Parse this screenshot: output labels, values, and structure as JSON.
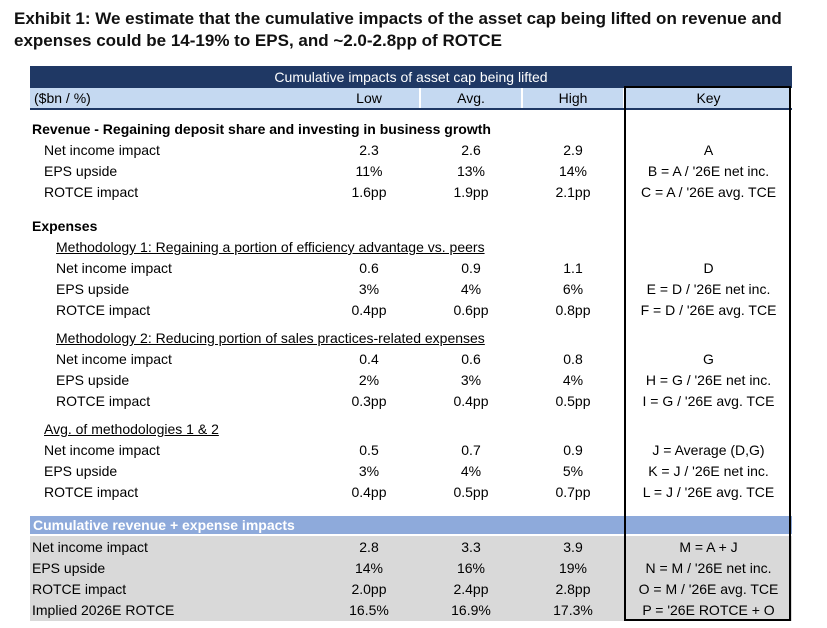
{
  "title": "Exhibit 1: We estimate that the cumulative impacts of the asset cap being lifted on revenue and expenses could be 14-19% to EPS, and ~2.0-2.8pp of ROTCE",
  "banner": "Cumulative impacts of asset cap being lifted",
  "header": {
    "label": "($bn / %)",
    "low": "Low",
    "avg": "Avg.",
    "high": "High",
    "key": "Key"
  },
  "revenue": {
    "title": "Revenue - Regaining deposit share and investing in business growth",
    "rows": [
      {
        "label": "Net income impact",
        "low": "2.3",
        "avg": "2.6",
        "high": "2.9",
        "key": "A"
      },
      {
        "label": "EPS upside",
        "low": "11%",
        "avg": "13%",
        "high": "14%",
        "key": "B = A / '26E net inc."
      },
      {
        "label": "ROTCE impact",
        "low": "1.6pp",
        "avg": "1.9pp",
        "high": "2.1pp",
        "key": "C = A / '26E avg. TCE"
      }
    ]
  },
  "expenses": {
    "title": "Expenses",
    "m1": {
      "title": "Methodology 1: Regaining a portion of efficiency advantage vs. peers",
      "rows": [
        {
          "label": "Net income impact",
          "low": "0.6",
          "avg": "0.9",
          "high": "1.1",
          "key": "D"
        },
        {
          "label": "EPS upside",
          "low": "3%",
          "avg": "4%",
          "high": "6%",
          "key": "E = D / '26E net inc."
        },
        {
          "label": "ROTCE impact",
          "low": "0.4pp",
          "avg": "0.6pp",
          "high": "0.8pp",
          "key": "F = D / '26E avg. TCE"
        }
      ]
    },
    "m2": {
      "title": "Methodology 2: Reducing portion of sales practices-related expenses",
      "rows": [
        {
          "label": "Net income impact",
          "low": "0.4",
          "avg": "0.6",
          "high": "0.8",
          "key": "G"
        },
        {
          "label": "EPS upside",
          "low": "2%",
          "avg": "3%",
          "high": "4%",
          "key": "H = G / '26E net inc."
        },
        {
          "label": "ROTCE impact",
          "low": "0.3pp",
          "avg": "0.4pp",
          "high": "0.5pp",
          "key": "I = G / '26E avg. TCE"
        }
      ]
    },
    "avg": {
      "title": "Avg. of methodologies 1 & 2",
      "rows": [
        {
          "label": "Net income impact",
          "low": "0.5",
          "avg": "0.7",
          "high": "0.9",
          "key": "J = Average (D,G)"
        },
        {
          "label": "EPS upside",
          "low": "3%",
          "avg": "4%",
          "high": "5%",
          "key": "K = J / '26E net inc."
        },
        {
          "label": "ROTCE impact",
          "low": "0.4pp",
          "avg": "0.5pp",
          "high": "0.7pp",
          "key": "L = J / '26E avg. TCE"
        }
      ]
    }
  },
  "cumulative": {
    "title": "Cumulative revenue + expense impacts",
    "rows": [
      {
        "label": "Net income impact",
        "low": "2.8",
        "avg": "3.3",
        "high": "3.9",
        "key": "M = A + J"
      },
      {
        "label": "EPS upside",
        "low": "14%",
        "avg": "16%",
        "high": "19%",
        "key": "N = M / '26E net inc."
      },
      {
        "label": "ROTCE impact",
        "low": "2.0pp",
        "avg": "2.4pp",
        "high": "2.8pp",
        "key": "O = M / '26E avg. TCE"
      },
      {
        "label": "Implied 2026E ROTCE",
        "low": "16.5%",
        "avg": "16.9%",
        "high": "17.3%",
        "key": "P = '26E ROTCE + O"
      }
    ]
  }
}
